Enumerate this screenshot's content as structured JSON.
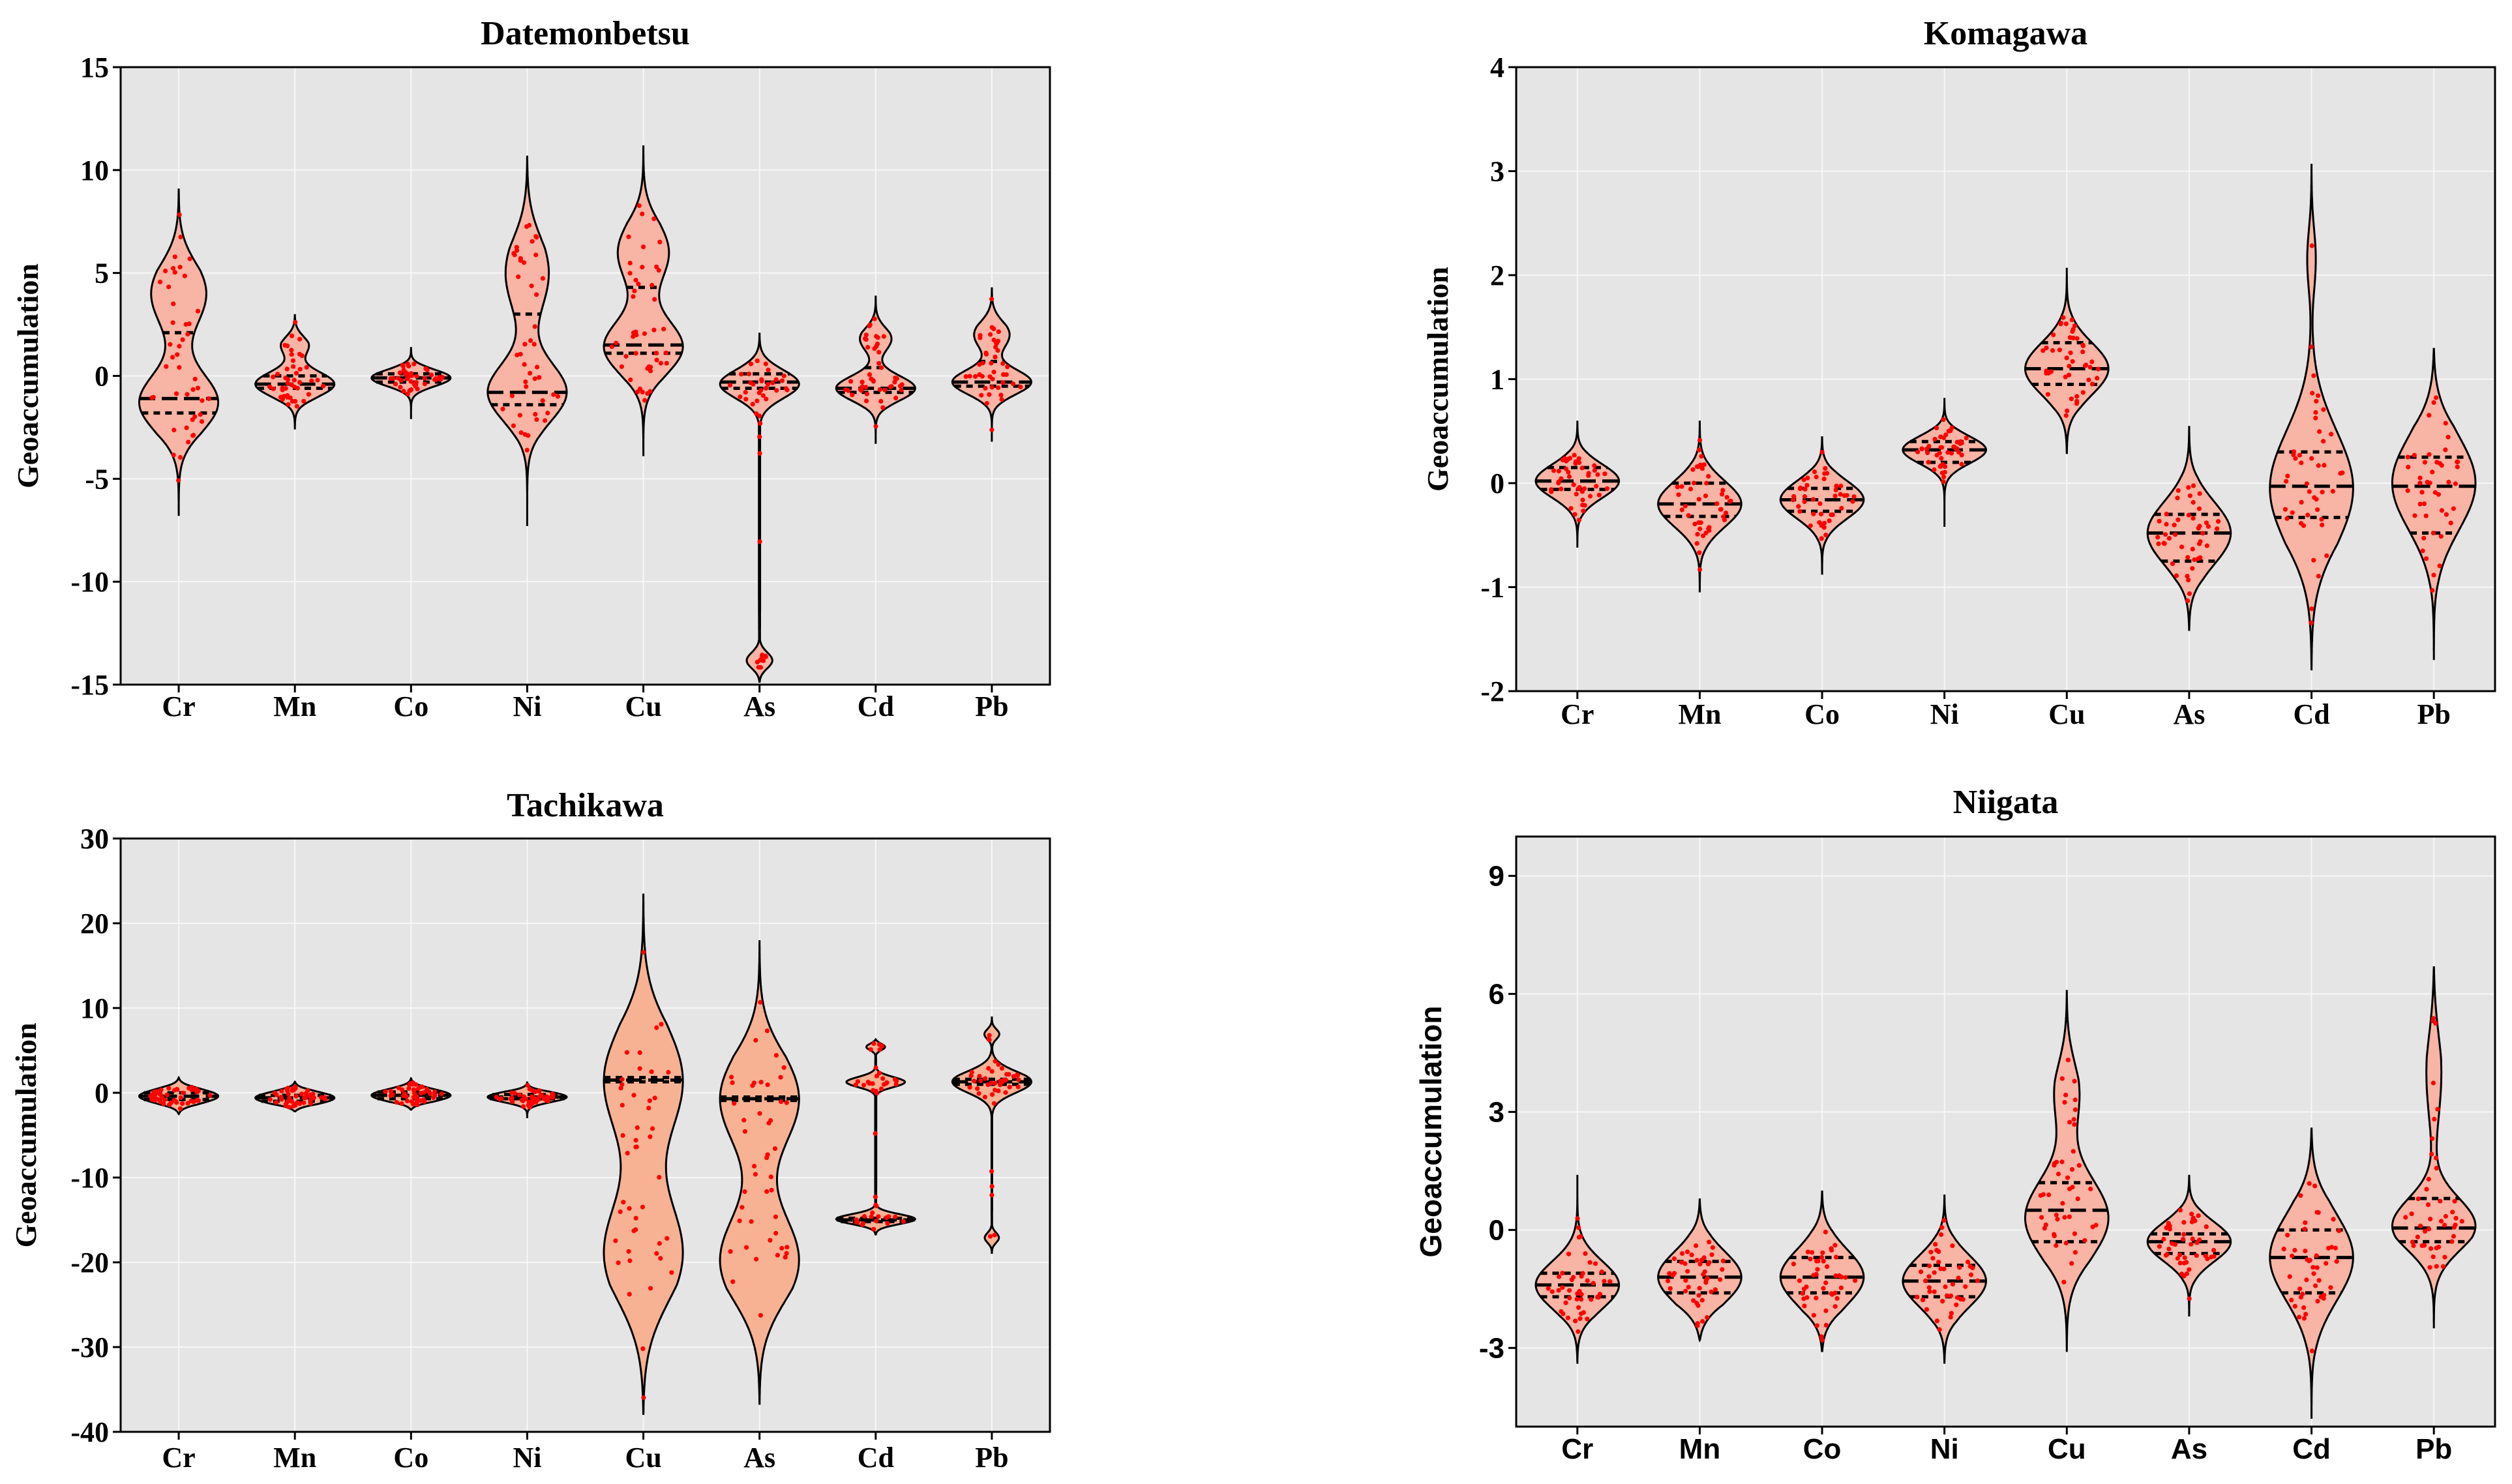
{
  "colors": {
    "plot_bg": "#e5e5e5",
    "grid": "#f7f7f7",
    "violin_fill": "#f8b4a4",
    "violin_fill_alt": "#f7b294",
    "point": "#ff0000",
    "outline": "#000000"
  },
  "chart_data": [
    {
      "type": "violin",
      "title": "Datemonbetsu",
      "ylabel": "Geoaccumulation",
      "xlabel": "",
      "ylim": [
        -15,
        15
      ],
      "yticks": [
        -15,
        -10,
        -5,
        0,
        5,
        10,
        15
      ],
      "categories": [
        "Cr",
        "Mn",
        "Co",
        "Ni",
        "Cu",
        "As",
        "Cd",
        "Pb"
      ],
      "violins": [
        {
          "min": -6.8,
          "max": 9.1,
          "median": -1.1,
          "q1": -1.8,
          "q3": 2.1,
          "modes": [
            [
              -1.3,
              1.0,
              1.4
            ],
            [
              4.0,
              0.7,
              1.6
            ]
          ]
        },
        {
          "min": -2.6,
          "max": 3.0,
          "median": -0.4,
          "q1": -0.6,
          "q3": 0.0,
          "modes": [
            [
              -0.4,
              1.0,
              0.6
            ],
            [
              1.5,
              0.35,
              0.5
            ]
          ]
        },
        {
          "min": -2.1,
          "max": 1.4,
          "median": -0.1,
          "q1": -0.3,
          "q3": 0.1,
          "modes": [
            [
              -0.1,
              1.0,
              0.4
            ]
          ]
        },
        {
          "min": -7.3,
          "max": 10.7,
          "median": -0.8,
          "q1": -1.4,
          "q3": 3.0,
          "modes": [
            [
              -0.8,
              1.0,
              1.4
            ],
            [
              5.0,
              0.55,
              1.9
            ]
          ]
        },
        {
          "min": -3.9,
          "max": 11.2,
          "median": 1.5,
          "q1": 1.1,
          "q3": 4.3,
          "modes": [
            [
              1.4,
              1.0,
              1.3
            ],
            [
              6.0,
              0.65,
              1.5
            ]
          ]
        },
        {
          "min": -14.9,
          "max": 2.1,
          "median": -0.3,
          "q1": -0.6,
          "q3": 0.1,
          "modes": [
            [
              -0.3,
              1.0,
              0.7
            ],
            [
              -13.9,
              0.5,
              0.4
            ]
          ],
          "neck": 0.012
        },
        {
          "min": -3.3,
          "max": 3.9,
          "median": -0.6,
          "q1": -0.8,
          "q3": 0.4,
          "modes": [
            [
              -0.6,
              1.0,
              0.6
            ],
            [
              1.8,
              0.4,
              0.6
            ]
          ]
        },
        {
          "min": -3.2,
          "max": 4.3,
          "median": -0.3,
          "q1": -0.5,
          "q3": 0.7,
          "modes": [
            [
              -0.3,
              1.0,
              0.6
            ],
            [
              2.0,
              0.45,
              0.7
            ]
          ]
        }
      ]
    },
    {
      "type": "violin",
      "title": "Komagawa",
      "ylabel": "Geoaccumulation",
      "xlabel": "",
      "ylim": [
        -2,
        4
      ],
      "yticks": [
        -2,
        -1,
        0,
        1,
        2,
        3,
        4
      ],
      "categories": [
        "Cr",
        "Mn",
        "Co",
        "Ni",
        "Cu",
        "As",
        "Cd",
        "Pb"
      ],
      "violins": [
        {
          "min": -0.62,
          "max": 0.6,
          "median": 0.02,
          "q1": -0.06,
          "q3": 0.15,
          "modes": [
            [
              0.02,
              1.0,
              0.16
            ]
          ]
        },
        {
          "min": -1.05,
          "max": 0.6,
          "median": -0.2,
          "q1": -0.32,
          "q3": 0.0,
          "modes": [
            [
              -0.2,
              1.0,
              0.22
            ]
          ]
        },
        {
          "min": -0.88,
          "max": 0.45,
          "median": -0.16,
          "q1": -0.27,
          "q3": -0.05,
          "modes": [
            [
              -0.16,
              1.0,
              0.18
            ]
          ]
        },
        {
          "min": -0.42,
          "max": 0.82,
          "median": 0.32,
          "q1": 0.2,
          "q3": 0.4,
          "modes": [
            [
              0.32,
              1.0,
              0.13
            ]
          ]
        },
        {
          "min": 0.28,
          "max": 2.07,
          "median": 1.1,
          "q1": 0.95,
          "q3": 1.35,
          "modes": [
            [
              1.1,
              1.0,
              0.25
            ]
          ]
        },
        {
          "min": -1.42,
          "max": 0.55,
          "median": -0.48,
          "q1": -0.75,
          "q3": -0.3,
          "modes": [
            [
              -0.48,
              1.0,
              0.3
            ]
          ]
        },
        {
          "min": -1.8,
          "max": 3.07,
          "median": -0.03,
          "q1": -0.33,
          "q3": 0.3,
          "modes": [
            [
              -0.05,
              1.0,
              0.55
            ],
            [
              2.2,
              0.12,
              0.3
            ]
          ]
        },
        {
          "min": -1.7,
          "max": 1.3,
          "median": -0.03,
          "q1": -0.48,
          "q3": 0.25,
          "modes": [
            [
              0.0,
              1.0,
              0.45
            ]
          ]
        }
      ]
    },
    {
      "type": "violin",
      "title": "Tachikawa",
      "ylabel": "Geoaccumulation",
      "xlabel": "",
      "ylim": [
        -40,
        30
      ],
      "yticks": [
        -40,
        -30,
        -20,
        -10,
        0,
        10,
        20,
        30
      ],
      "categories": [
        "Cr",
        "Mn",
        "Co",
        "Ni",
        "Cu",
        "As",
        "Cd",
        "Pb"
      ],
      "violins": [
        {
          "min": -2.5,
          "max": 1.8,
          "median": -0.4,
          "q1": -0.8,
          "q3": 0.0,
          "modes": [
            [
              -0.4,
              1.0,
              0.8
            ]
          ]
        },
        {
          "min": -2.2,
          "max": 1.3,
          "median": -0.6,
          "q1": -1.0,
          "q3": -0.3,
          "modes": [
            [
              -0.6,
              1.0,
              0.7
            ]
          ]
        },
        {
          "min": -2.0,
          "max": 1.7,
          "median": -0.3,
          "q1": -0.7,
          "q3": 0.1,
          "modes": [
            [
              -0.3,
              1.0,
              0.7
            ]
          ]
        },
        {
          "min": -3.0,
          "max": 1.2,
          "median": -0.5,
          "q1": -0.7,
          "q3": -0.2,
          "modes": [
            [
              -0.5,
              1.0,
              0.6
            ]
          ]
        },
        {
          "min": -38.0,
          "max": 23.5,
          "median": 1.5,
          "q1": 1.3,
          "q3": 1.8,
          "modes": [
            [
              1.5,
              1.0,
              6.5
            ],
            [
              -19.0,
              1.0,
              6.5
            ]
          ]
        },
        {
          "min": -36.8,
          "max": 18.0,
          "median": -0.7,
          "q1": -0.9,
          "q3": -0.5,
          "modes": [
            [
              -0.7,
              1.0,
              5.5
            ],
            [
              -19.8,
              1.0,
              5.5
            ]
          ]
        },
        {
          "min": -16.8,
          "max": 6.3,
          "median": -15.0,
          "q1": -15.2,
          "q3": -14.8,
          "modes": [
            [
              -15.0,
              1.0,
              0.6
            ],
            [
              1.3,
              0.45,
              0.6
            ],
            [
              5.5,
              0.35,
              0.4
            ]
          ],
          "neck": 0.008
        },
        {
          "min": -19.0,
          "max": 9.0,
          "median": 1.3,
          "q1": 1.0,
          "q3": 1.6,
          "modes": [
            [
              1.3,
              1.0,
              1.3
            ],
            [
              7.0,
              0.35,
              0.6
            ],
            [
              -17.2,
              0.35,
              0.6
            ]
          ],
          "neck": 0.008
        }
      ]
    },
    {
      "type": "violin",
      "title": "Niigata",
      "ylabel": "Geoaccumulation",
      "xlabel": "",
      "ylim": [
        -5,
        10
      ],
      "yticks": [
        -3,
        0,
        3,
        6,
        9
      ],
      "categories": [
        "Cr",
        "Mn",
        "Co",
        "Ni",
        "Cu",
        "As",
        "Cd",
        "Pb"
      ],
      "violins": [
        {
          "min": -3.4,
          "max": 1.4,
          "median": -1.4,
          "q1": -1.7,
          "q3": -1.1,
          "modes": [
            [
              -1.4,
              1.0,
              0.6
            ]
          ]
        },
        {
          "min": -2.8,
          "max": 0.8,
          "median": -1.2,
          "q1": -1.6,
          "q3": -0.8,
          "modes": [
            [
              -1.2,
              1.0,
              0.65
            ]
          ]
        },
        {
          "min": -3.1,
          "max": 1.0,
          "median": -1.2,
          "q1": -1.6,
          "q3": -0.7,
          "modes": [
            [
              -1.2,
              1.0,
              0.7
            ]
          ]
        },
        {
          "min": -3.4,
          "max": 0.9,
          "median": -1.3,
          "q1": -1.7,
          "q3": -0.9,
          "modes": [
            [
              -1.3,
              1.0,
              0.65
            ]
          ]
        },
        {
          "min": -3.1,
          "max": 6.1,
          "median": 0.5,
          "q1": -0.3,
          "q3": 1.2,
          "modes": [
            [
              0.3,
              1.0,
              1.0
            ],
            [
              3.5,
              0.3,
              0.9
            ]
          ]
        },
        {
          "min": -2.2,
          "max": 1.4,
          "median": -0.3,
          "q1": -0.6,
          "q3": -0.1,
          "modes": [
            [
              -0.3,
              1.0,
              0.5
            ]
          ]
        },
        {
          "min": -4.8,
          "max": 2.6,
          "median": -0.7,
          "q1": -1.6,
          "q3": 0.0,
          "modes": [
            [
              -0.7,
              1.0,
              1.1
            ]
          ]
        },
        {
          "min": -2.5,
          "max": 6.7,
          "median": 0.05,
          "q1": -0.3,
          "q3": 0.8,
          "modes": [
            [
              0.1,
              1.0,
              0.7
            ],
            [
              4.0,
              0.18,
              1.2
            ]
          ]
        }
      ]
    }
  ]
}
